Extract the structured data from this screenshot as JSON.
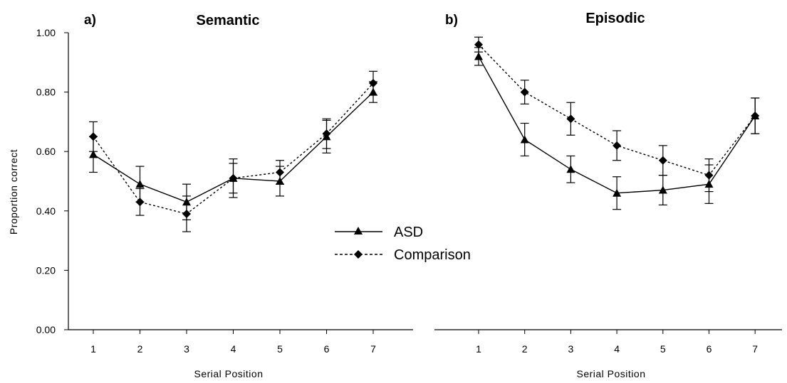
{
  "ylabel": "Proportion correct",
  "legend": {
    "placement": "center",
    "items": [
      {
        "label": "ASD",
        "marker": "triangle",
        "dash": "solid"
      },
      {
        "label": "Comparison",
        "marker": "diamond",
        "dash": "dotted"
      }
    ]
  },
  "chart_data": [
    {
      "type": "line",
      "panel_letter": "a)",
      "title": "Semantic",
      "xlabel": "Serial Position",
      "ylabel": "Proportion correct",
      "categories": [
        "1",
        "2",
        "3",
        "4",
        "5",
        "6",
        "7"
      ],
      "ylim": [
        0,
        1
      ],
      "yticks": [
        "0.00",
        "0.20",
        "0.40",
        "0.60",
        "0.80",
        "1.00"
      ],
      "grid": false,
      "series": [
        {
          "name": "ASD",
          "marker": "triangle",
          "values": [
            0.59,
            0.49,
            0.43,
            0.51,
            0.5,
            0.65,
            0.8
          ],
          "errors": [
            0.06,
            0.06,
            0.06,
            0.065,
            0.05,
            0.055,
            0.035
          ]
        },
        {
          "name": "Comparison",
          "marker": "diamond",
          "values": [
            0.65,
            0.43,
            0.39,
            0.51,
            0.53,
            0.66,
            0.83
          ],
          "errors": [
            0.05,
            0.045,
            0.06,
            0.05,
            0.04,
            0.05,
            0.04
          ]
        }
      ]
    },
    {
      "type": "line",
      "panel_letter": "b)",
      "title": "Episodic",
      "xlabel": "Serial Position",
      "categories": [
        "1",
        "2",
        "3",
        "4",
        "5",
        "6",
        "7"
      ],
      "ylim": [
        0,
        1
      ],
      "grid": false,
      "series": [
        {
          "name": "ASD",
          "marker": "triangle",
          "values": [
            0.92,
            0.64,
            0.54,
            0.46,
            0.47,
            0.49,
            0.72
          ],
          "errors": [
            0.03,
            0.055,
            0.045,
            0.055,
            0.05,
            0.065,
            0.06
          ]
        },
        {
          "name": "Comparison",
          "marker": "diamond",
          "values": [
            0.96,
            0.8,
            0.71,
            0.62,
            0.57,
            0.52,
            0.72
          ],
          "errors": [
            0.025,
            0.04,
            0.055,
            0.05,
            0.05,
            0.055,
            0.06
          ]
        }
      ]
    }
  ]
}
